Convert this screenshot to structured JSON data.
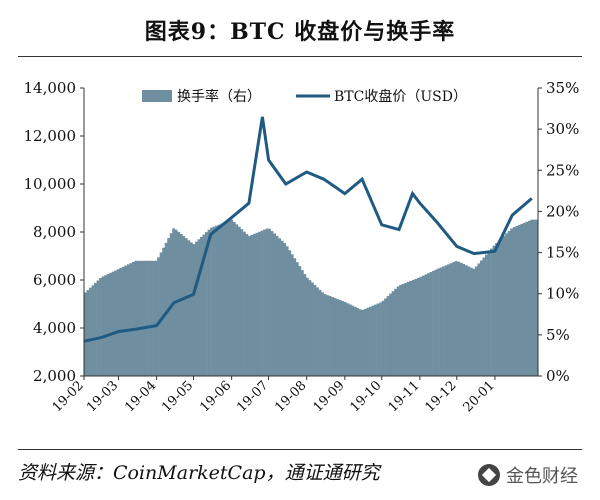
{
  "title": "图表9：BTC 收盘价与换手率",
  "source": "资料来源：CoinMarketCap，通证通研究",
  "watermark": "金色财经",
  "colors": {
    "turnover": "#6f8fa0",
    "price": "#1f5a82",
    "text": "#111111"
  },
  "chart_data": {
    "type": "bar+line",
    "legend_position": "top",
    "grid": false,
    "x_tick_labels": [
      "19-02",
      "19-03",
      "19-04",
      "19-05",
      "19-06",
      "19-07",
      "19-08",
      "19-09",
      "19-10",
      "19-11",
      "19-12",
      "20-01"
    ],
    "y_left": {
      "ticks": [
        "2,000",
        "4,000",
        "6,000",
        "8,000",
        "10,000",
        "12,000",
        "14,000"
      ],
      "range": [
        2000,
        14000
      ]
    },
    "y_right": {
      "ticks": [
        "0%",
        "5%",
        "10%",
        "15%",
        "20%",
        "25%",
        "30%",
        "35%"
      ],
      "range": [
        0,
        35
      ]
    },
    "series": [
      {
        "name": "换手率（右）",
        "type": "bar",
        "axis": "right",
        "x": [
          "19-02-01",
          "19-02-15",
          "19-03-01",
          "19-03-15",
          "19-04-01",
          "19-04-15",
          "19-05-01",
          "19-05-15",
          "19-06-01",
          "19-06-15",
          "19-07-01",
          "19-07-15",
          "19-08-01",
          "19-08-15",
          "19-09-01",
          "19-09-15",
          "19-10-01",
          "19-10-15",
          "19-11-01",
          "19-11-15",
          "19-12-01",
          "19-12-15",
          "20-01-01",
          "20-01-15",
          "20-01-31"
        ],
        "values": [
          10,
          12,
          13,
          14,
          14,
          18,
          16,
          18,
          19,
          17,
          18,
          16,
          12,
          10,
          9,
          8,
          9,
          11,
          12,
          13,
          14,
          13,
          16,
          18,
          19
        ]
      },
      {
        "name": "BTC收盘价（USD）",
        "type": "line",
        "axis": "left",
        "x": [
          "19-02-01",
          "19-02-15",
          "19-03-01",
          "19-03-15",
          "19-04-01",
          "19-04-15",
          "19-05-01",
          "19-05-15",
          "19-06-01",
          "19-06-15",
          "19-06-26",
          "19-07-01",
          "19-07-15",
          "19-08-01",
          "19-08-15",
          "19-09-01",
          "19-09-15",
          "19-10-01",
          "19-10-15",
          "19-10-26",
          "19-11-01",
          "19-11-15",
          "19-12-01",
          "19-12-15",
          "20-01-01",
          "20-01-15",
          "20-01-31"
        ],
        "values": [
          3450,
          3600,
          3850,
          3950,
          4100,
          5050,
          5400,
          7900,
          8600,
          9200,
          12800,
          11000,
          10000,
          10500,
          10200,
          9600,
          10200,
          8300,
          8100,
          9600,
          9200,
          8400,
          7400,
          7100,
          7200,
          8700,
          9400
        ]
      }
    ]
  }
}
